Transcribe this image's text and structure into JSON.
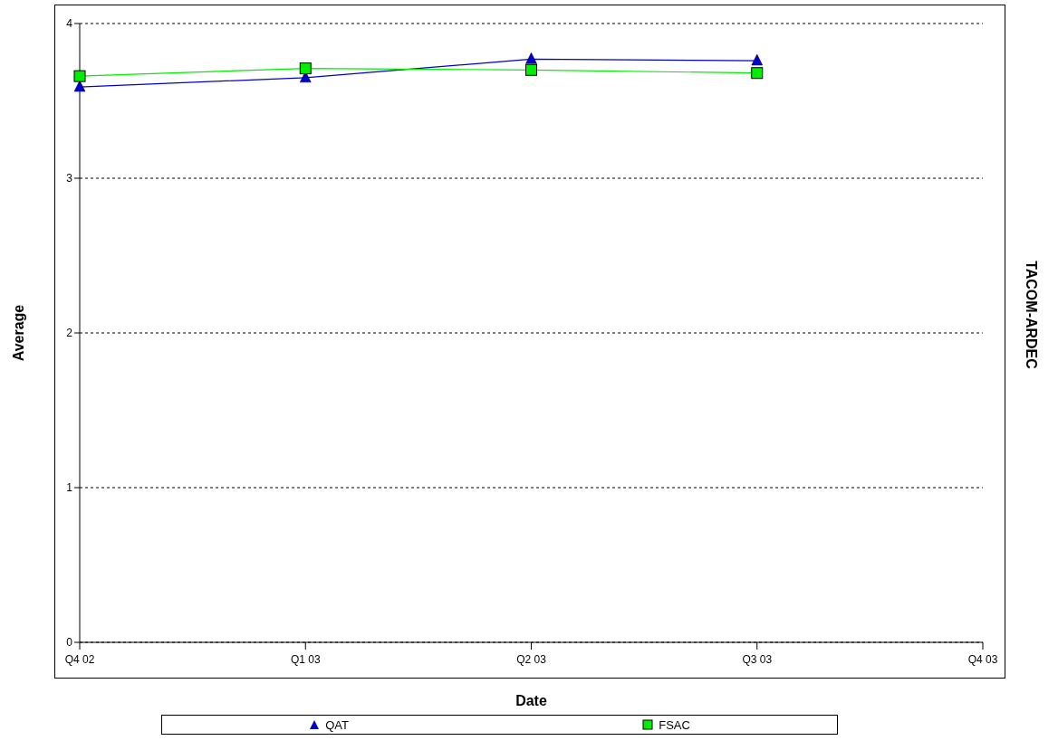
{
  "chart_data": {
    "type": "line",
    "title": "TACOM-ARDEC",
    "xlabel": "Date",
    "ylabel": "Average",
    "categories": [
      "Q4 02",
      "Q1 03",
      "Q2 03",
      "Q3 03",
      "Q4 03"
    ],
    "series": [
      {
        "name": "QAT",
        "color": "#0000cc",
        "marker": "triangle",
        "values": [
          3.59,
          3.65,
          3.77,
          3.76,
          null
        ]
      },
      {
        "name": "FSAC",
        "color": "#00ee00",
        "marker": "square",
        "values": [
          3.66,
          3.71,
          3.7,
          3.68,
          null
        ]
      }
    ],
    "ylim": [
      0,
      4
    ],
    "yticks": [
      0,
      1,
      2,
      3,
      4
    ],
    "grid": "y",
    "legend": "bottom"
  }
}
